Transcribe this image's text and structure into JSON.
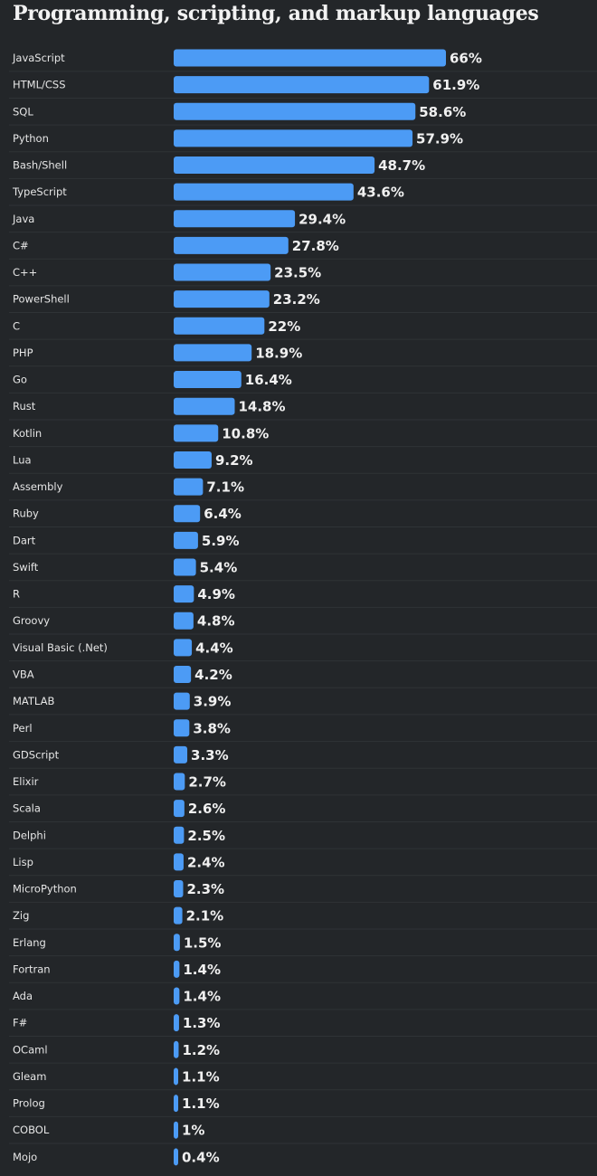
{
  "chart_data": {
    "type": "bar",
    "orientation": "horizontal",
    "title": "Programming, scripting, and markup languages",
    "unit": "%",
    "categories": [
      "JavaScript",
      "HTML/CSS",
      "SQL",
      "Python",
      "Bash/Shell",
      "TypeScript",
      "Java",
      "C#",
      "C++",
      "PowerShell",
      "C",
      "PHP",
      "Go",
      "Rust",
      "Kotlin",
      "Lua",
      "Assembly",
      "Ruby",
      "Dart",
      "Swift",
      "R",
      "Groovy",
      "Visual Basic (.Net)",
      "VBA",
      "MATLAB",
      "Perl",
      "GDScript",
      "Elixir",
      "Scala",
      "Delphi",
      "Lisp",
      "MicroPython",
      "Zig",
      "Erlang",
      "Fortran",
      "Ada",
      "F#",
      "OCaml",
      "Gleam",
      "Prolog",
      "COBOL",
      "Mojo"
    ],
    "values": [
      66,
      61.9,
      58.6,
      57.9,
      48.7,
      43.6,
      29.4,
      27.8,
      23.5,
      23.2,
      22,
      18.9,
      16.4,
      14.8,
      10.8,
      9.2,
      7.1,
      6.4,
      5.9,
      5.4,
      4.9,
      4.8,
      4.4,
      4.2,
      3.9,
      3.8,
      3.3,
      2.7,
      2.6,
      2.5,
      2.4,
      2.3,
      2.1,
      1.5,
      1.4,
      1.4,
      1.3,
      1.2,
      1.1,
      1.1,
      1,
      0.4
    ],
    "value_labels": [
      "66%",
      "61.9%",
      "58.6%",
      "57.9%",
      "48.7%",
      "43.6%",
      "29.4%",
      "27.8%",
      "23.5%",
      "23.2%",
      "22%",
      "18.9%",
      "16.4%",
      "14.8%",
      "10.8%",
      "9.2%",
      "7.1%",
      "6.4%",
      "5.9%",
      "5.4%",
      "4.9%",
      "4.8%",
      "4.4%",
      "4.2%",
      "3.9%",
      "3.8%",
      "3.3%",
      "2.7%",
      "2.6%",
      "2.5%",
      "2.4%",
      "2.3%",
      "2.1%",
      "1.5%",
      "1.4%",
      "1.4%",
      "1.3%",
      "1.2%",
      "1.1%",
      "1.1%",
      "1%",
      "0.4%"
    ],
    "xlim": [
      0,
      100
    ],
    "grid": false,
    "colors": {
      "bar": "#4c9bf5",
      "background": "#232629",
      "text": "#f0f0f0"
    }
  }
}
